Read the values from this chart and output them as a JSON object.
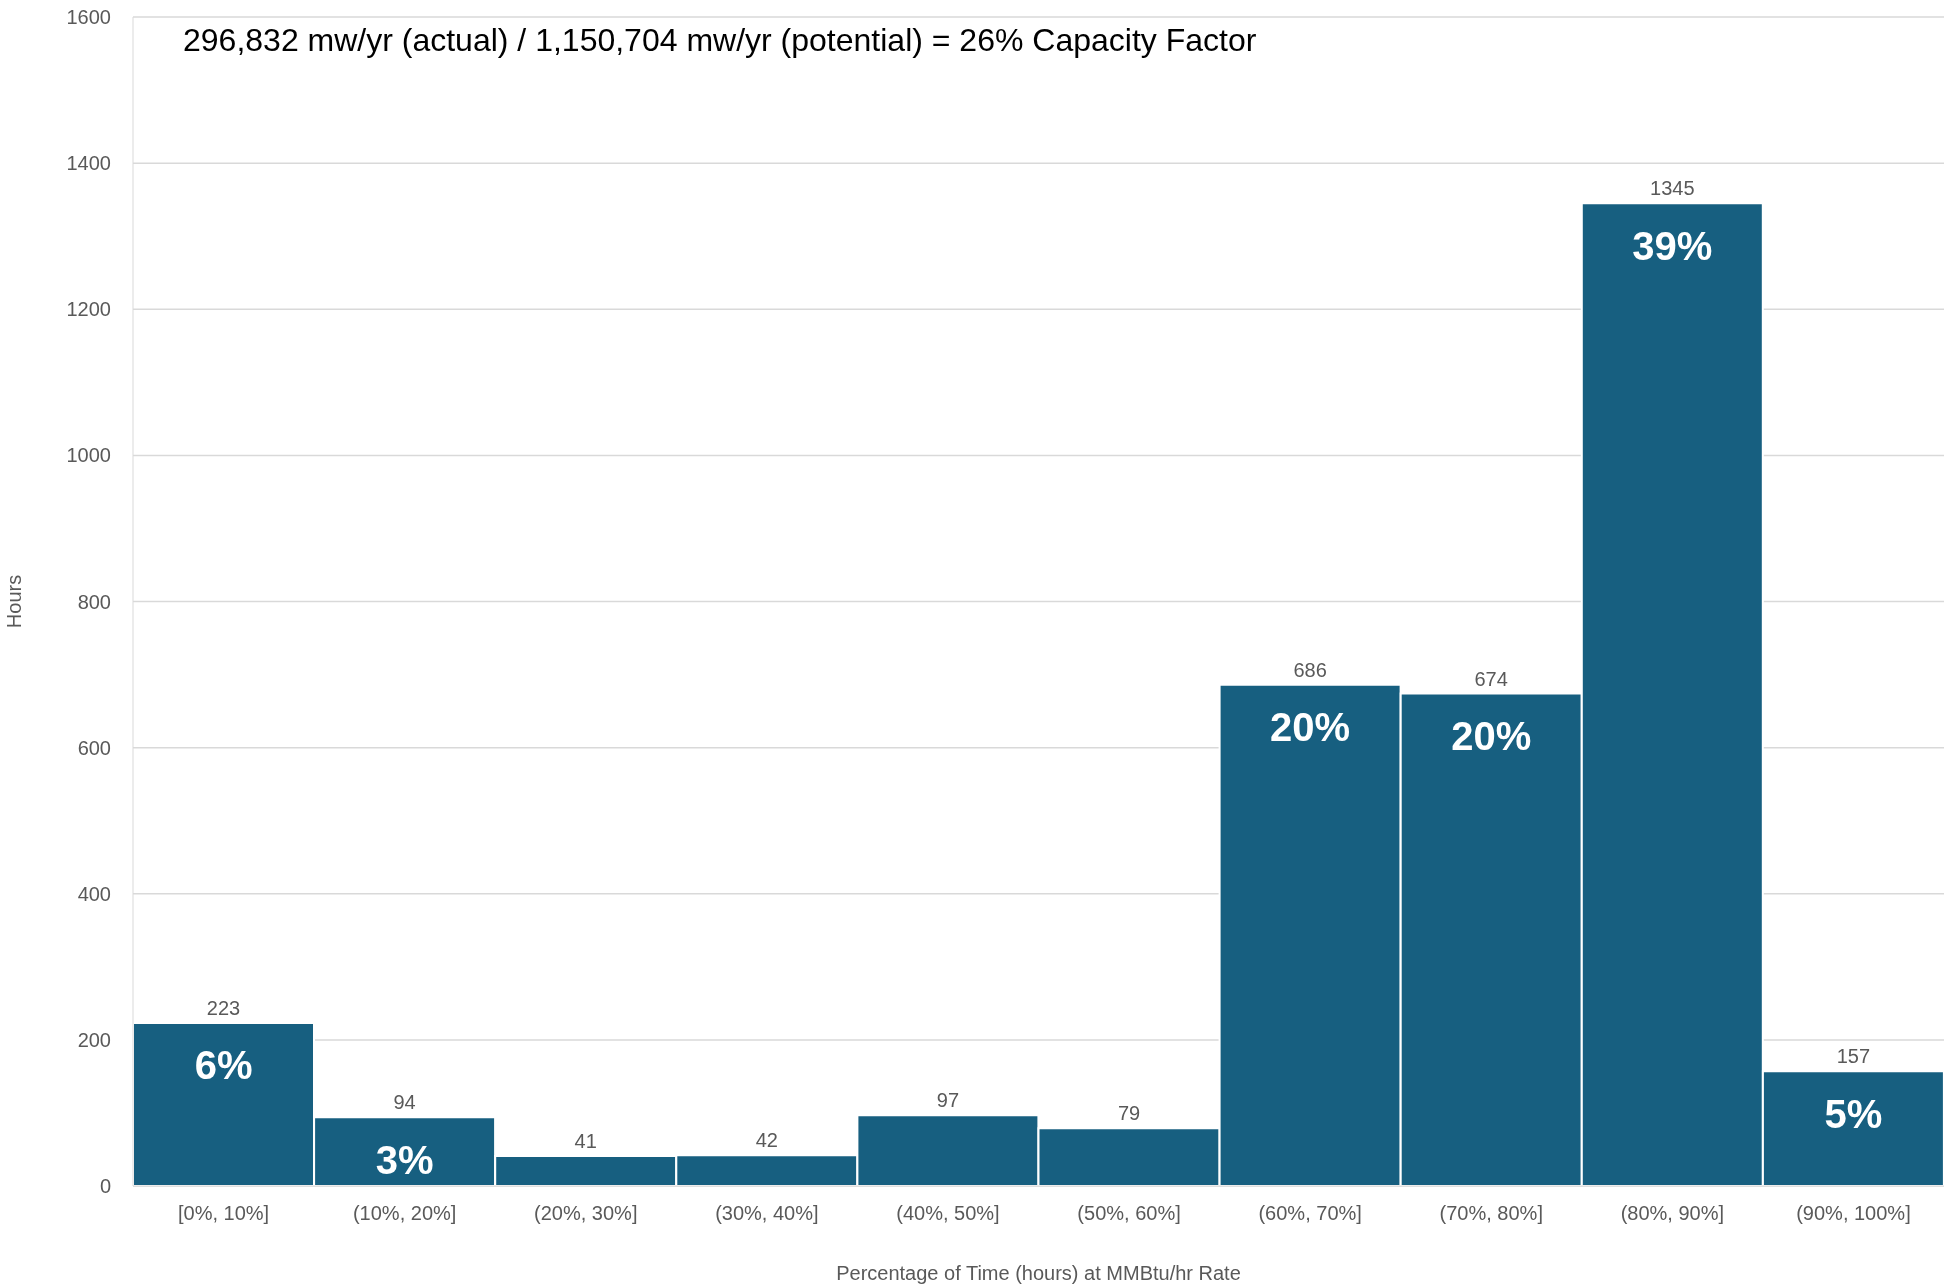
{
  "chart_data": {
    "type": "bar",
    "title": "296,832  mw/yr (actual) / 1,150,704 mw/yr (potential) = 26% Capacity Factor",
    "xlabel": "Percentage of Time (hours) at MMBtu/hr Rate",
    "ylabel": "Hours",
    "categories": [
      "[0%, 10%]",
      "(10%, 20%]",
      "(20%, 30%]",
      "(30%, 40%]",
      "(40%, 50%]",
      "(50%, 60%]",
      "(60%, 70%]",
      "(70%, 80%]",
      "(80%, 90%]",
      "(90%, 100%]"
    ],
    "values": [
      223,
      94,
      41,
      42,
      97,
      79,
      686,
      674,
      1345,
      157
    ],
    "color": "#175f80",
    "ylim": [
      0,
      1600
    ],
    "yticks": [
      0,
      200,
      400,
      600,
      800,
      1000,
      1200,
      1400,
      1600
    ],
    "grid": "y",
    "data_labels": true,
    "annotations": [
      {
        "text": "6%",
        "x": "[0%, 10%]",
        "y": 223
      },
      {
        "text": "3%",
        "x": "(10%, 20%]",
        "y": 94
      },
      {
        "text": "20%",
        "x": "(60%, 70%]",
        "y": 686
      },
      {
        "text": "20%",
        "x": "(70%, 80%]",
        "y": 674
      },
      {
        "text": "39%",
        "x": "(80%, 90%]",
        "y": 1345
      },
      {
        "text": "5%",
        "x": "(90%, 100%]",
        "y": 157
      }
    ]
  }
}
